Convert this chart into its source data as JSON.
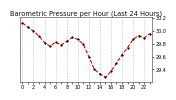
{
  "title": "Barometric Pressure per Hour (Last 24 Hours)",
  "x_values": [
    0,
    1,
    2,
    3,
    4,
    5,
    6,
    7,
    8,
    9,
    10,
    11,
    12,
    13,
    14,
    15,
    16,
    17,
    18,
    19,
    20,
    21,
    22,
    23
  ],
  "y_values": [
    30.13,
    30.06,
    30.0,
    29.92,
    29.82,
    29.76,
    29.83,
    29.78,
    29.84,
    29.9,
    29.87,
    29.79,
    29.6,
    29.4,
    29.33,
    29.28,
    29.37,
    29.5,
    29.63,
    29.74,
    29.87,
    29.93,
    29.89,
    29.96
  ],
  "line_color": "#cc0000",
  "marker_color": "#111111",
  "background_color": "#ffffff",
  "ylim": [
    29.2,
    30.22
  ],
  "ytick_values": [
    29.4,
    29.6,
    29.8,
    30.0,
    30.2
  ],
  "grid_color": "#999999",
  "title_fontsize": 4.8,
  "tick_fontsize": 3.5,
  "line_style": "--",
  "marker_style": ".",
  "marker_size": 2.5,
  "line_width": 0.75
}
